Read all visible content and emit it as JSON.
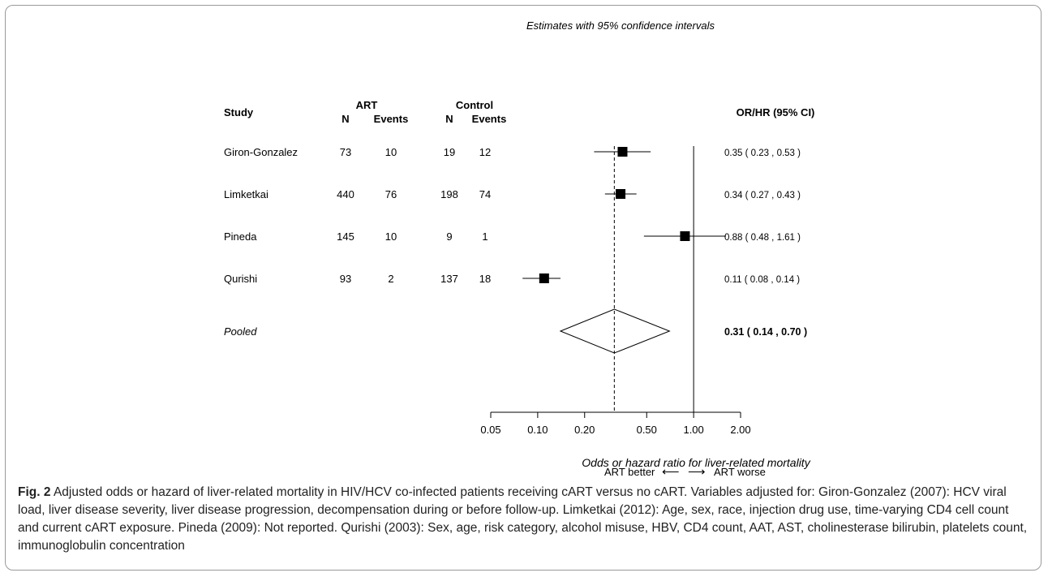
{
  "chart_data": {
    "type": "forest",
    "title": "Estimates with 95% confidence intervals",
    "columns": {
      "study": "Study",
      "art_group": "ART",
      "control_group": "Control",
      "n": "N",
      "events": "Events",
      "estimate": "OR/HR (95% CI)"
    },
    "rows": [
      {
        "study": "Giron-Gonzalez",
        "art_n": "73",
        "art_events": "10",
        "control_n": "19",
        "control_events": "12",
        "est": 0.35,
        "lo": 0.23,
        "hi": 0.53,
        "label": "0.35   ( 0.23 , 0.53 )"
      },
      {
        "study": "Limketkai",
        "art_n": "440",
        "art_events": "76",
        "control_n": "198",
        "control_events": "74",
        "est": 0.34,
        "lo": 0.27,
        "hi": 0.43,
        "label": "0.34   ( 0.27 , 0.43 )"
      },
      {
        "study": "Pineda",
        "art_n": "145",
        "art_events": "10",
        "control_n": "9",
        "control_events": "1",
        "est": 0.88,
        "lo": 0.48,
        "hi": 1.61,
        "label": "0.88   ( 0.48 , 1.61 )"
      },
      {
        "study": "Qurishi",
        "art_n": "93",
        "art_events": "2",
        "control_n": "137",
        "control_events": "18",
        "est": 0.11,
        "lo": 0.08,
        "hi": 0.14,
        "label": "0.11   ( 0.08 , 0.14 )"
      }
    ],
    "pooled": {
      "study": "Pooled",
      "est": 0.31,
      "lo": 0.14,
      "hi": 0.7,
      "label": "0.31   ( 0.14 , 0.70 )"
    },
    "x_scale": "log",
    "xlim": [
      0.05,
      2.0
    ],
    "x_ticks": [
      0.05,
      0.1,
      0.2,
      0.5,
      1.0,
      2.0
    ],
    "x_tick_labels": [
      "0.05",
      "0.10",
      "0.20",
      "0.50",
      "1.00",
      "2.00"
    ],
    "null_line": 1.0,
    "xlabel": "Odds or hazard ratio for liver-related mortality",
    "direction_left": "ART better",
    "direction_right": "ART worse",
    "arrow_left": "⟵",
    "arrow_right": "⟶"
  },
  "caption": {
    "label": "Fig. 2",
    "text": "Adjusted odds or hazard of liver-related mortality in HIV/HCV co-infected patients receiving cART versus no cART. Variables adjusted for: Giron-Gonzalez (2007): HCV viral load, liver disease severity, liver disease progression, decompensation during or before follow-up. Limketkai (2012): Age, sex, race, injection drug use, time-varying CD4 cell count and current cART exposure. Pineda (2009): Not reported. Qurishi (2003): Sex, age, risk category, alcohol misuse, HBV, CD4 count, AAT, AST, cholinesterase bilirubin, platelets count, immunoglobulin concentration"
  }
}
